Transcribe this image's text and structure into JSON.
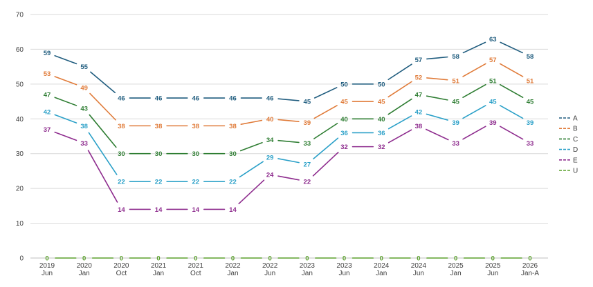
{
  "chart_data": {
    "type": "line",
    "title": "",
    "xlabel": "",
    "ylabel": "",
    "ylim": [
      0,
      70
    ],
    "yticks": [
      0,
      10,
      20,
      30,
      40,
      50,
      60,
      70
    ],
    "grid": true,
    "legend_position": "right",
    "categories": [
      {
        "top": "2019",
        "bottom": "Jun"
      },
      {
        "top": "2020",
        "bottom": "Jan"
      },
      {
        "top": "2020",
        "bottom": "Oct"
      },
      {
        "top": "2021",
        "bottom": "Jan"
      },
      {
        "top": "2021",
        "bottom": "Oct"
      },
      {
        "top": "2022",
        "bottom": "Jan"
      },
      {
        "top": "2022",
        "bottom": "Jun"
      },
      {
        "top": "2023",
        "bottom": "Jan"
      },
      {
        "top": "2023",
        "bottom": "Jun"
      },
      {
        "top": "2024",
        "bottom": "Jan"
      },
      {
        "top": "2024",
        "bottom": "Jun"
      },
      {
        "top": "2025",
        "bottom": "Jan"
      },
      {
        "top": "2025",
        "bottom": "Jun"
      },
      {
        "top": "2026",
        "bottom": "Jan-A"
      }
    ],
    "series": [
      {
        "name": "A",
        "color": "#1f5c7e",
        "values": [
          59,
          55,
          46,
          46,
          46,
          46,
          46,
          45,
          50,
          50,
          57,
          58,
          63,
          58
        ]
      },
      {
        "name": "B",
        "color": "#e07b39",
        "values": [
          53,
          49,
          38,
          38,
          38,
          38,
          40,
          39,
          45,
          45,
          52,
          51,
          57,
          51
        ]
      },
      {
        "name": "C",
        "color": "#2e7d32",
        "values": [
          47,
          43,
          30,
          30,
          30,
          30,
          34,
          33,
          40,
          40,
          47,
          45,
          51,
          45
        ]
      },
      {
        "name": "D",
        "color": "#2aa0c8",
        "values": [
          42,
          38,
          22,
          22,
          22,
          22,
          29,
          27,
          36,
          36,
          42,
          39,
          45,
          39
        ]
      },
      {
        "name": "E",
        "color": "#8e2c8e",
        "values": [
          37,
          33,
          14,
          14,
          14,
          14,
          24,
          22,
          32,
          32,
          38,
          33,
          39,
          33
        ]
      },
      {
        "name": "U",
        "color": "#5aa02c",
        "values": [
          0,
          0,
          0,
          0,
          0,
          0,
          0,
          0,
          0,
          0,
          0,
          0,
          0,
          0
        ]
      }
    ]
  }
}
